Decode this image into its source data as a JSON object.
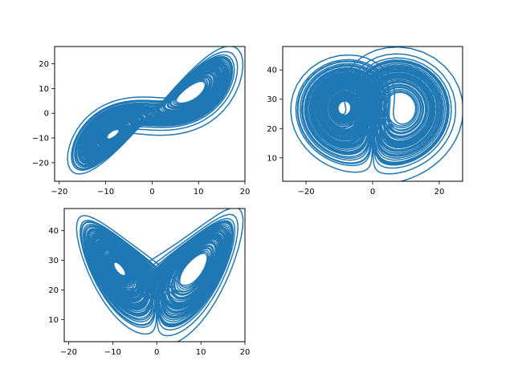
{
  "figure": {
    "background": "#ffffff",
    "series_color": "#1f77b4"
  },
  "chart_data": [
    {
      "type": "line",
      "title": "",
      "xlabel": "",
      "ylabel": "",
      "grid": false,
      "xlim": [
        -21,
        20
      ],
      "ylim": [
        -27.5,
        27
      ],
      "xticks": [
        -20,
        -10,
        0,
        10,
        20
      ],
      "yticks": [
        -20,
        -10,
        0,
        10,
        20
      ],
      "xtick_labels": [
        "−20",
        "−10",
        "0",
        "10",
        "20"
      ],
      "ytick_labels": [
        "−20",
        "−10",
        "0",
        "10",
        "20"
      ],
      "series": [
        {
          "attractor_projection": "x-y",
          "color": "#1f77b4",
          "center": [
            0.0,
            0.0
          ],
          "lobe_centers": [
            [
              -8.5,
              -8.5
            ],
            [
              8.5,
              8.5
            ]
          ],
          "initial_segment": [
            [
              1.0,
              10.0
            ],
            [
              3.0,
              11.0
            ],
            [
              5.5,
              13.0
            ]
          ]
        }
      ]
    },
    {
      "type": "line",
      "title": "",
      "xlabel": "",
      "ylabel": "",
      "grid": false,
      "xlim": [
        -27,
        27
      ],
      "ylim": [
        2,
        48
      ],
      "xticks": [
        -20,
        0,
        20
      ],
      "yticks": [
        10,
        20,
        30,
        40
      ],
      "xtick_labels": [
        "−20",
        "0",
        "20"
      ],
      "ytick_labels": [
        "10",
        "20",
        "30",
        "40"
      ],
      "series": [
        {
          "attractor_projection": "y-z",
          "color": "#1f77b4",
          "lobe_centers": [
            [
              -8.5,
              27.0
            ],
            [
              8.5,
              27.0
            ]
          ]
        }
      ]
    },
    {
      "type": "line",
      "title": "",
      "xlabel": "",
      "ylabel": "",
      "grid": false,
      "xlim": [
        -21,
        20
      ],
      "ylim": [
        2.5,
        47.5
      ],
      "xticks": [
        -20,
        -10,
        0,
        10,
        20
      ],
      "yticks": [
        10,
        20,
        30,
        40
      ],
      "xtick_labels": [
        "−20",
        "−10",
        "0",
        "10",
        "20"
      ],
      "ytick_labels": [
        "10",
        "20",
        "30",
        "40"
      ],
      "series": [
        {
          "attractor_projection": "x-z",
          "color": "#1f77b4",
          "lobe_centers": [
            [
              -8.5,
              27.0
            ],
            [
              8.5,
              27.0
            ]
          ]
        }
      ]
    }
  ]
}
